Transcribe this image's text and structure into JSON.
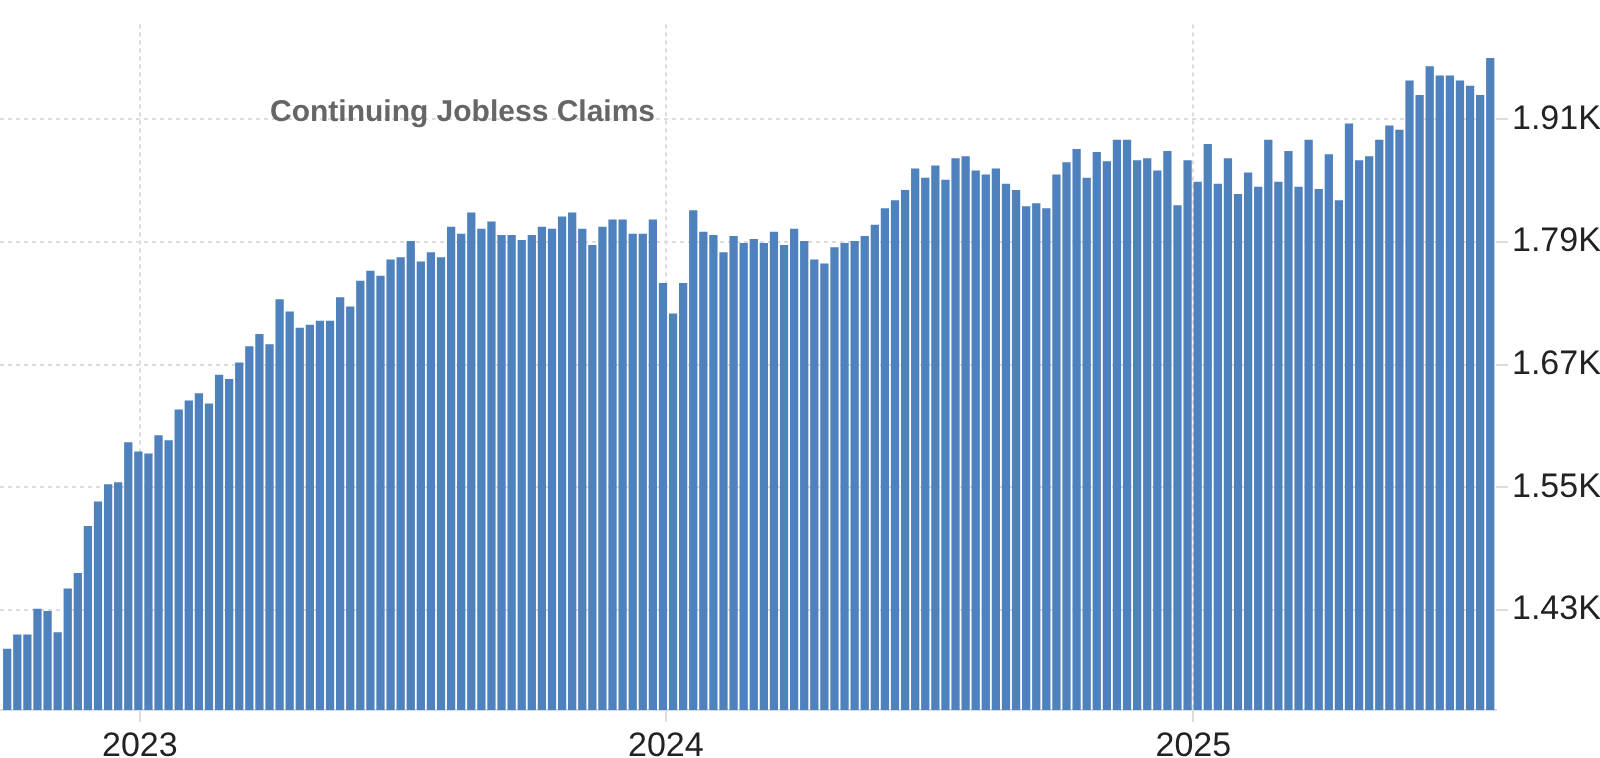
{
  "chart_data": {
    "type": "bar",
    "title": "Continuing Jobless Claims",
    "color": "#4f81bd",
    "grid": true,
    "x": [
      "2022-10-01",
      "2022-10-08",
      "2022-10-15",
      "2022-10-22",
      "2022-10-29",
      "2022-11-05",
      "2022-11-12",
      "2022-11-19",
      "2022-11-26",
      "2022-12-03",
      "2022-12-10",
      "2022-12-17",
      "2022-12-24",
      "2022-12-31",
      "2023-01-07",
      "2023-01-14",
      "2023-01-21",
      "2023-01-28",
      "2023-02-04",
      "2023-02-11",
      "2023-02-18",
      "2023-02-25",
      "2023-03-04",
      "2023-03-11",
      "2023-03-18",
      "2023-03-25",
      "2023-04-01",
      "2023-04-08",
      "2023-04-15",
      "2023-04-22",
      "2023-04-29",
      "2023-05-06",
      "2023-05-13",
      "2023-05-20",
      "2023-05-27",
      "2023-06-03",
      "2023-06-10",
      "2023-06-17",
      "2023-06-24",
      "2023-07-01",
      "2023-07-08",
      "2023-07-15",
      "2023-07-22",
      "2023-07-29",
      "2023-08-05",
      "2023-08-12",
      "2023-08-19",
      "2023-08-26",
      "2023-09-02",
      "2023-09-09",
      "2023-09-16",
      "2023-09-23",
      "2023-09-30",
      "2023-10-07",
      "2023-10-14",
      "2023-10-21",
      "2023-10-28",
      "2023-11-04",
      "2023-11-11",
      "2023-11-18",
      "2023-11-25",
      "2023-12-02",
      "2023-12-09",
      "2023-12-16",
      "2023-12-23",
      "2023-12-30",
      "2024-01-06",
      "2024-01-13",
      "2024-01-20",
      "2024-01-27",
      "2024-02-03",
      "2024-02-10",
      "2024-02-17",
      "2024-02-24",
      "2024-03-02",
      "2024-03-09",
      "2024-03-16",
      "2024-03-23",
      "2024-03-30",
      "2024-04-06",
      "2024-04-13",
      "2024-04-20",
      "2024-04-27",
      "2024-05-04",
      "2024-05-11",
      "2024-05-18",
      "2024-05-25",
      "2024-06-01",
      "2024-06-08",
      "2024-06-15",
      "2024-06-22",
      "2024-06-29",
      "2024-07-06",
      "2024-07-13",
      "2024-07-20",
      "2024-07-27",
      "2024-08-03",
      "2024-08-10",
      "2024-08-17",
      "2024-08-24",
      "2024-08-31",
      "2024-09-07",
      "2024-09-14",
      "2024-09-21",
      "2024-09-28",
      "2024-10-05",
      "2024-10-12",
      "2024-10-19",
      "2024-10-26",
      "2024-11-02",
      "2024-11-09",
      "2024-11-16",
      "2024-11-23",
      "2024-11-30",
      "2024-12-07",
      "2024-12-14",
      "2024-12-21",
      "2024-12-28",
      "2025-01-04",
      "2025-01-11",
      "2025-01-18",
      "2025-01-25",
      "2025-02-01",
      "2025-02-08",
      "2025-02-15",
      "2025-02-22",
      "2025-03-01",
      "2025-03-08",
      "2025-03-15",
      "2025-03-22",
      "2025-03-29",
      "2025-04-05",
      "2025-04-12",
      "2025-04-19",
      "2025-04-26",
      "2025-05-03",
      "2025-05-10",
      "2025-05-17",
      "2025-05-24",
      "2025-05-31",
      "2025-06-07",
      "2025-06-14",
      "2025-06-21",
      "2025-06-28",
      "2025-07-05",
      "2025-07-12",
      "2025-07-19",
      "2025-07-26"
    ],
    "values": [
      1.392,
      1.406,
      1.406,
      1.431,
      1.429,
      1.408,
      1.451,
      1.466,
      1.512,
      1.536,
      1.553,
      1.555,
      1.594,
      1.585,
      1.583,
      1.601,
      1.596,
      1.626,
      1.635,
      1.642,
      1.632,
      1.66,
      1.656,
      1.672,
      1.688,
      1.7,
      1.69,
      1.734,
      1.722,
      1.706,
      1.709,
      1.713,
      1.713,
      1.736,
      1.727,
      1.752,
      1.762,
      1.757,
      1.773,
      1.775,
      1.791,
      1.771,
      1.78,
      1.775,
      1.805,
      1.798,
      1.819,
      1.803,
      1.81,
      1.797,
      1.797,
      1.792,
      1.797,
      1.805,
      1.803,
      1.815,
      1.819,
      1.803,
      1.787,
      1.805,
      1.812,
      1.812,
      1.798,
      1.798,
      1.812,
      1.75,
      1.72,
      1.75,
      1.821,
      1.8,
      1.797,
      1.78,
      1.796,
      1.789,
      1.793,
      1.789,
      1.8,
      1.787,
      1.803,
      1.791,
      1.773,
      1.769,
      1.785,
      1.789,
      1.791,
      1.796,
      1.807,
      1.823,
      1.831,
      1.841,
      1.862,
      1.853,
      1.865,
      1.851,
      1.872,
      1.874,
      1.86,
      1.856,
      1.862,
      1.847,
      1.841,
      1.825,
      1.828,
      1.823,
      1.856,
      1.868,
      1.881,
      1.853,
      1.878,
      1.869,
      1.89,
      1.89,
      1.87,
      1.872,
      1.86,
      1.879,
      1.826,
      1.87,
      1.849,
      1.886,
      1.847,
      1.872,
      1.837,
      1.858,
      1.844,
      1.89,
      1.849,
      1.879,
      1.844,
      1.89,
      1.842,
      1.876,
      1.831,
      1.906,
      1.87,
      1.874,
      1.89,
      1.904,
      1.9,
      1.948,
      1.934,
      1.962,
      1.953,
      1.953,
      1.948,
      1.943,
      1.934,
      1.97
    ],
    "xlim": [
      "2022-09-26",
      "2025-07-30"
    ],
    "xticks": [
      {
        "value": "2023-01-01",
        "label": "2023"
      },
      {
        "value": "2024-01-01",
        "label": "2024"
      },
      {
        "value": "2025-01-01",
        "label": "2025"
      }
    ],
    "ylim": [
      1.332,
      2.003
    ],
    "yticks": [
      {
        "value": 1.43,
        "label": "1.43K"
      },
      {
        "value": 1.55,
        "label": "1.55K"
      },
      {
        "value": 1.67,
        "label": "1.67K"
      },
      {
        "value": 1.79,
        "label": "1.79K"
      },
      {
        "value": 1.91,
        "label": "1.91K"
      }
    ]
  }
}
